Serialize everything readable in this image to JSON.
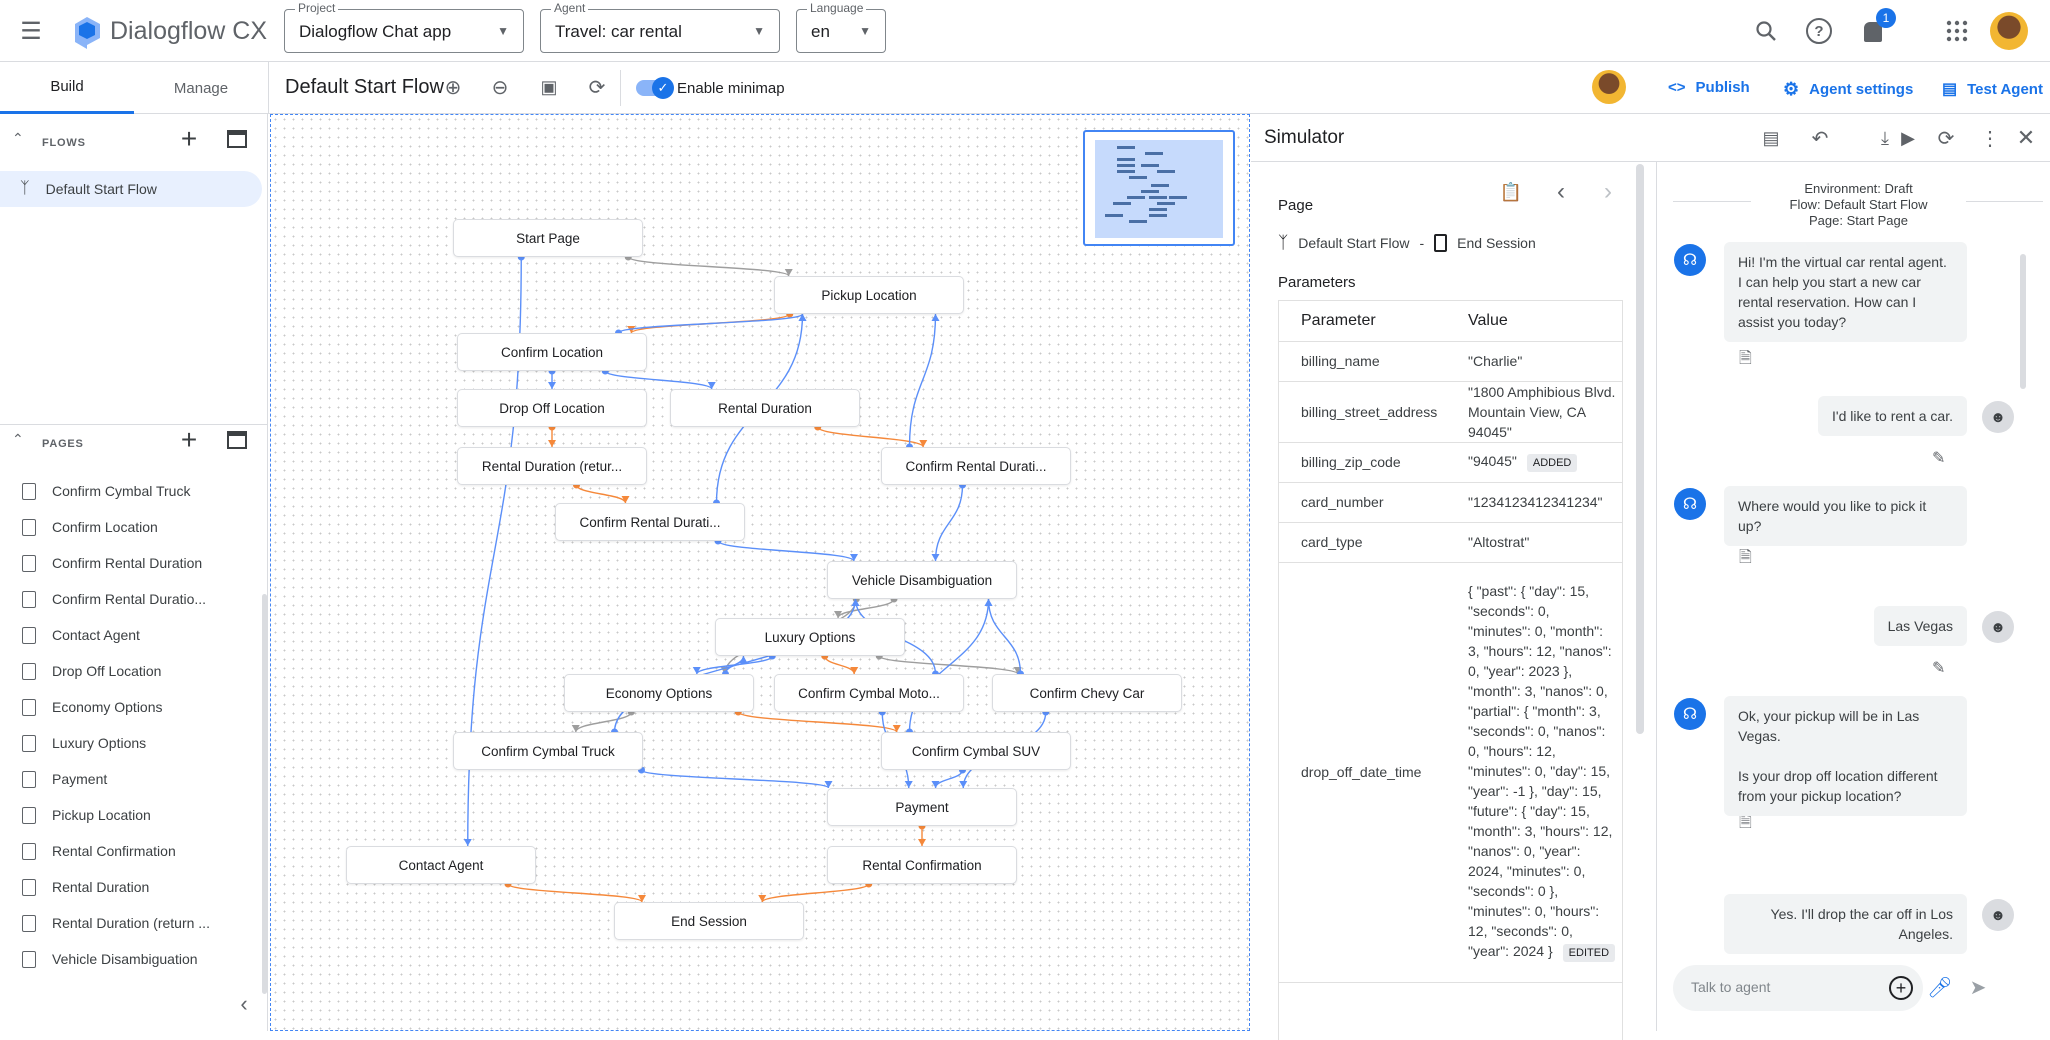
{
  "app": {
    "title": "Dialogflow CX"
  },
  "header": {
    "project": {
      "label": "Project",
      "value": "Dialogflow Chat app"
    },
    "agent": {
      "label": "Agent",
      "value": "Travel: car rental"
    },
    "language": {
      "label": "Language",
      "value": "en"
    },
    "notification_count": "1"
  },
  "toolbar": {
    "tabs": [
      "Build",
      "Manage"
    ],
    "flow_title": "Default Start Flow",
    "minimap_label": "Enable minimap",
    "minimap_enabled": true,
    "publish": "Publish",
    "agent_settings": "Agent settings",
    "test_agent": "Test Agent"
  },
  "sidebar": {
    "flows_title": "FLOWS",
    "flows": [
      "Default Start Flow"
    ],
    "pages_title": "PAGES",
    "pages": [
      "Confirm Cymbal Truck",
      "Confirm Location",
      "Confirm Rental Duration",
      "Confirm Rental Duratio...",
      "Contact Agent",
      "Drop Off Location",
      "Economy Options",
      "Luxury Options",
      "Payment",
      "Pickup Location",
      "Rental Confirmation",
      "Rental Duration",
      "Rental Duration (return ...",
      "Vehicle Disambiguation"
    ]
  },
  "graph": {
    "nodes": [
      {
        "id": "start",
        "label": "Start Page"
      },
      {
        "id": "pickup",
        "label": "Pickup Location"
      },
      {
        "id": "confloc",
        "label": "Confirm Location"
      },
      {
        "id": "dropoff",
        "label": "Drop Off Location"
      },
      {
        "id": "rentdur",
        "label": "Rental Duration"
      },
      {
        "id": "rentret",
        "label": "Rental Duration (retur..."
      },
      {
        "id": "confdur2",
        "label": "Confirm Rental Durati..."
      },
      {
        "id": "confdur1",
        "label": "Confirm Rental Durati..."
      },
      {
        "id": "vehicle",
        "label": "Vehicle Disambiguation"
      },
      {
        "id": "luxury",
        "label": "Luxury Options"
      },
      {
        "id": "economy",
        "label": "Economy Options"
      },
      {
        "id": "moto",
        "label": "Confirm Cymbal Moto..."
      },
      {
        "id": "chevy",
        "label": "Confirm Chevy Car"
      },
      {
        "id": "truck",
        "label": "Confirm Cymbal Truck"
      },
      {
        "id": "suv",
        "label": "Confirm Cymbal SUV"
      },
      {
        "id": "payment",
        "label": "Payment"
      },
      {
        "id": "contact",
        "label": "Contact Agent"
      },
      {
        "id": "rentconf",
        "label": "Rental Confirmation"
      },
      {
        "id": "end",
        "label": "End Session"
      }
    ],
    "edges": [
      {
        "from": "start",
        "to": "pickup",
        "kind": "gray"
      },
      {
        "from": "start",
        "to": "contact",
        "kind": "blue"
      },
      {
        "from": "pickup",
        "to": "confloc",
        "kind": "orange"
      },
      {
        "from": "confloc",
        "to": "pickup",
        "kind": "blue"
      },
      {
        "from": "confloc",
        "to": "dropoff",
        "kind": "blue"
      },
      {
        "from": "confloc",
        "to": "rentdur",
        "kind": "blue"
      },
      {
        "from": "dropoff",
        "to": "rentret",
        "kind": "orange"
      },
      {
        "from": "rentdur",
        "to": "confdur2",
        "kind": "orange"
      },
      {
        "from": "rentret",
        "to": "confdur1",
        "kind": "orange"
      },
      {
        "from": "confdur1",
        "to": "pickup",
        "kind": "blue"
      },
      {
        "from": "confdur2",
        "to": "pickup",
        "kind": "blue"
      },
      {
        "from": "confdur1",
        "to": "vehicle",
        "kind": "blue"
      },
      {
        "from": "confdur2",
        "to": "vehicle",
        "kind": "blue"
      },
      {
        "from": "vehicle",
        "to": "luxury",
        "kind": "gray"
      },
      {
        "from": "vehicle",
        "to": "economy",
        "kind": "gray"
      },
      {
        "from": "luxury",
        "to": "economy",
        "kind": "blue"
      },
      {
        "from": "luxury",
        "to": "moto",
        "kind": "orange"
      },
      {
        "from": "luxury",
        "to": "chevy",
        "kind": "gray"
      },
      {
        "from": "economy",
        "to": "luxury",
        "kind": "blue"
      },
      {
        "from": "economy",
        "to": "truck",
        "kind": "gray"
      },
      {
        "from": "economy",
        "to": "suv",
        "kind": "orange"
      },
      {
        "from": "moto",
        "to": "vehicle",
        "kind": "blue"
      },
      {
        "from": "chevy",
        "to": "vehicle",
        "kind": "blue"
      },
      {
        "from": "suv",
        "to": "vehicle",
        "kind": "blue"
      },
      {
        "from": "truck",
        "to": "vehicle",
        "kind": "blue"
      },
      {
        "from": "truck",
        "to": "payment",
        "kind": "blue"
      },
      {
        "from": "moto",
        "to": "payment",
        "kind": "blue"
      },
      {
        "from": "suv",
        "to": "payment",
        "kind": "blue"
      },
      {
        "from": "chevy",
        "to": "payment",
        "kind": "blue"
      },
      {
        "from": "payment",
        "to": "rentconf",
        "kind": "orange"
      },
      {
        "from": "contact",
        "to": "end",
        "kind": "orange"
      },
      {
        "from": "rentconf",
        "to": "end",
        "kind": "orange"
      }
    ],
    "colors": {
      "blue": "#5b8ff9",
      "orange": "#f5883a",
      "gray": "#9e9e9e"
    }
  },
  "simulator": {
    "title": "Simulator",
    "page_label": "Page",
    "flow": "Default Start Flow",
    "separator": "-",
    "page": "End Session",
    "parameters_label": "Parameters",
    "columns": [
      "Parameter",
      "Value"
    ],
    "rows": [
      {
        "name": "billing_name",
        "value": "\"Charlie\"",
        "badge": ""
      },
      {
        "name": "billing_street_address",
        "value": "\"1800 Amphibious Blvd. Mountain View, CA 94045\"",
        "badge": ""
      },
      {
        "name": "billing_zip_code",
        "value": "\"94045\"",
        "badge": "ADDED"
      },
      {
        "name": "card_number",
        "value": "\"1234123412341234\"",
        "badge": ""
      },
      {
        "name": "card_type",
        "value": "\"Altostrat\"",
        "badge": ""
      },
      {
        "name": "drop_off_date_time",
        "value": "{ \"past\": { \"day\": 15, \"seconds\": 0, \"minutes\": 0, \"month\": 3, \"hours\": 12, \"nanos\": 0, \"year\": 2023 }, \"month\": 3, \"nanos\": 0, \"partial\": { \"month\": 3, \"seconds\": 0, \"nanos\": 0, \"hours\": 12, \"minutes\": 0, \"day\": 15, \"year\": -1 }, \"day\": 15, \"future\": { \"day\": 15, \"month\": 3, \"hours\": 12, \"nanos\": 0, \"year\": 2024, \"minutes\": 0, \"seconds\": 0 }, \"minutes\": 0, \"hours\": 12, \"seconds\": 0, \"year\": 2024 }",
        "badge": "EDITED"
      }
    ],
    "chat": {
      "environment": "Environment: Draft",
      "flow": "Flow: Default Start Flow",
      "page": "Page: Start Page",
      "messages": [
        {
          "from": "agent",
          "text": "Hi! I'm the virtual car rental agent. I can help you start a new car rental reservation. How can I assist you today?"
        },
        {
          "from": "user",
          "text": "I'd like to rent a car."
        },
        {
          "from": "agent",
          "text": "Where would you like to pick it up?"
        },
        {
          "from": "user",
          "text": "Las Vegas"
        },
        {
          "from": "agent",
          "text": "Ok, your pickup will be in Las Vegas.\n\nIs your drop off location different from your pickup location?"
        },
        {
          "from": "user",
          "text": "Yes. I'll drop the car off in Los Angeles."
        }
      ],
      "input_placeholder": "Talk to agent"
    }
  }
}
